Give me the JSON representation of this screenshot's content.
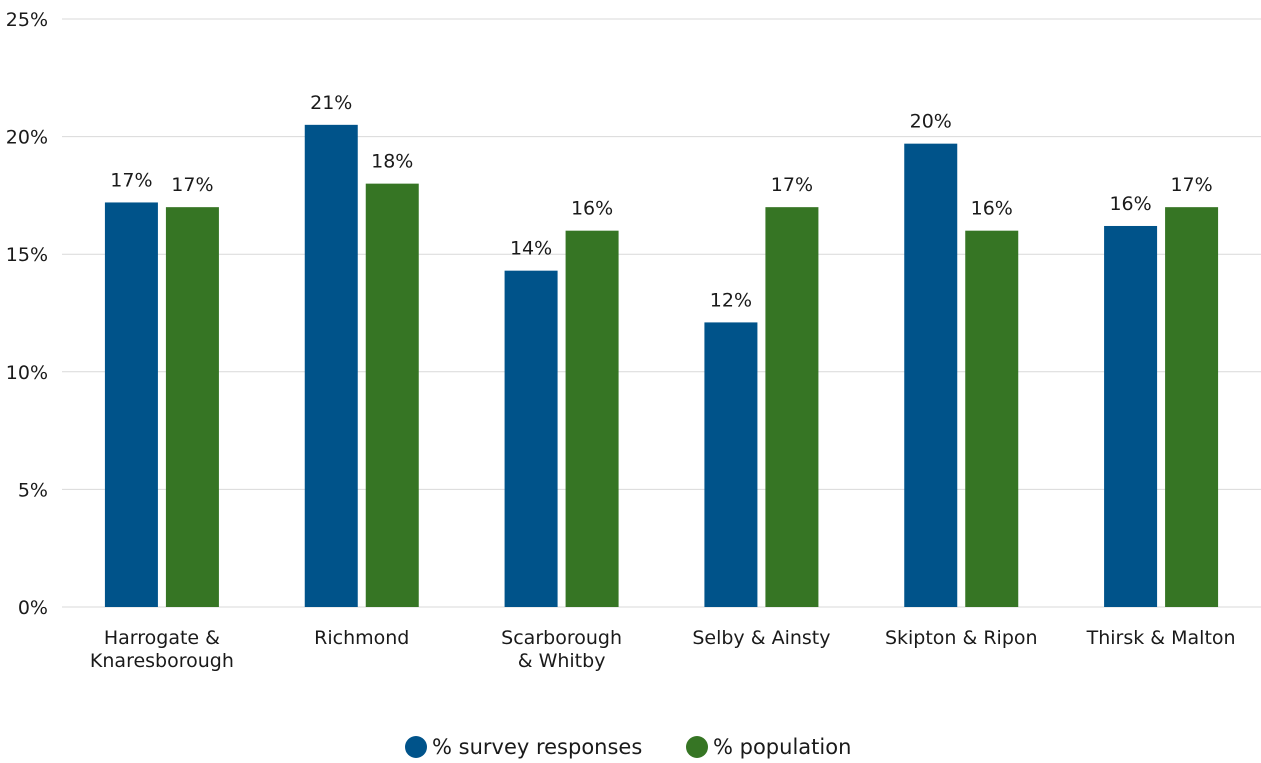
{
  "chart_data": {
    "type": "bar",
    "categories": [
      [
        "Harrogate &",
        "Knaresborough"
      ],
      [
        "Richmond"
      ],
      [
        "Scarborough",
        "& Whitby"
      ],
      [
        "Selby & Ainsty"
      ],
      [
        "Skipton & Ripon"
      ],
      [
        "Thirsk & Malton"
      ]
    ],
    "series": [
      {
        "name": "% survey responses",
        "color": "#00538a",
        "values": [
          17.2,
          20.5,
          14.3,
          12.1,
          19.7,
          16.2
        ],
        "labels": [
          "17%",
          "21%",
          "14%",
          "12%",
          "20%",
          "16%"
        ]
      },
      {
        "name": "% population",
        "color": "#367524",
        "values": [
          17.0,
          18.0,
          16.0,
          17.0,
          16.0,
          17.0
        ],
        "labels": [
          "17%",
          "18%",
          "16%",
          "17%",
          "16%",
          "17%"
        ]
      }
    ],
    "ylim": [
      0,
      25
    ],
    "yticks": [
      0,
      5,
      10,
      15,
      20,
      25
    ],
    "ytick_labels": [
      "0%",
      "5%",
      "10%",
      "15%",
      "20%",
      "25%"
    ],
    "grid": true,
    "legend_position": "bottom-center"
  }
}
